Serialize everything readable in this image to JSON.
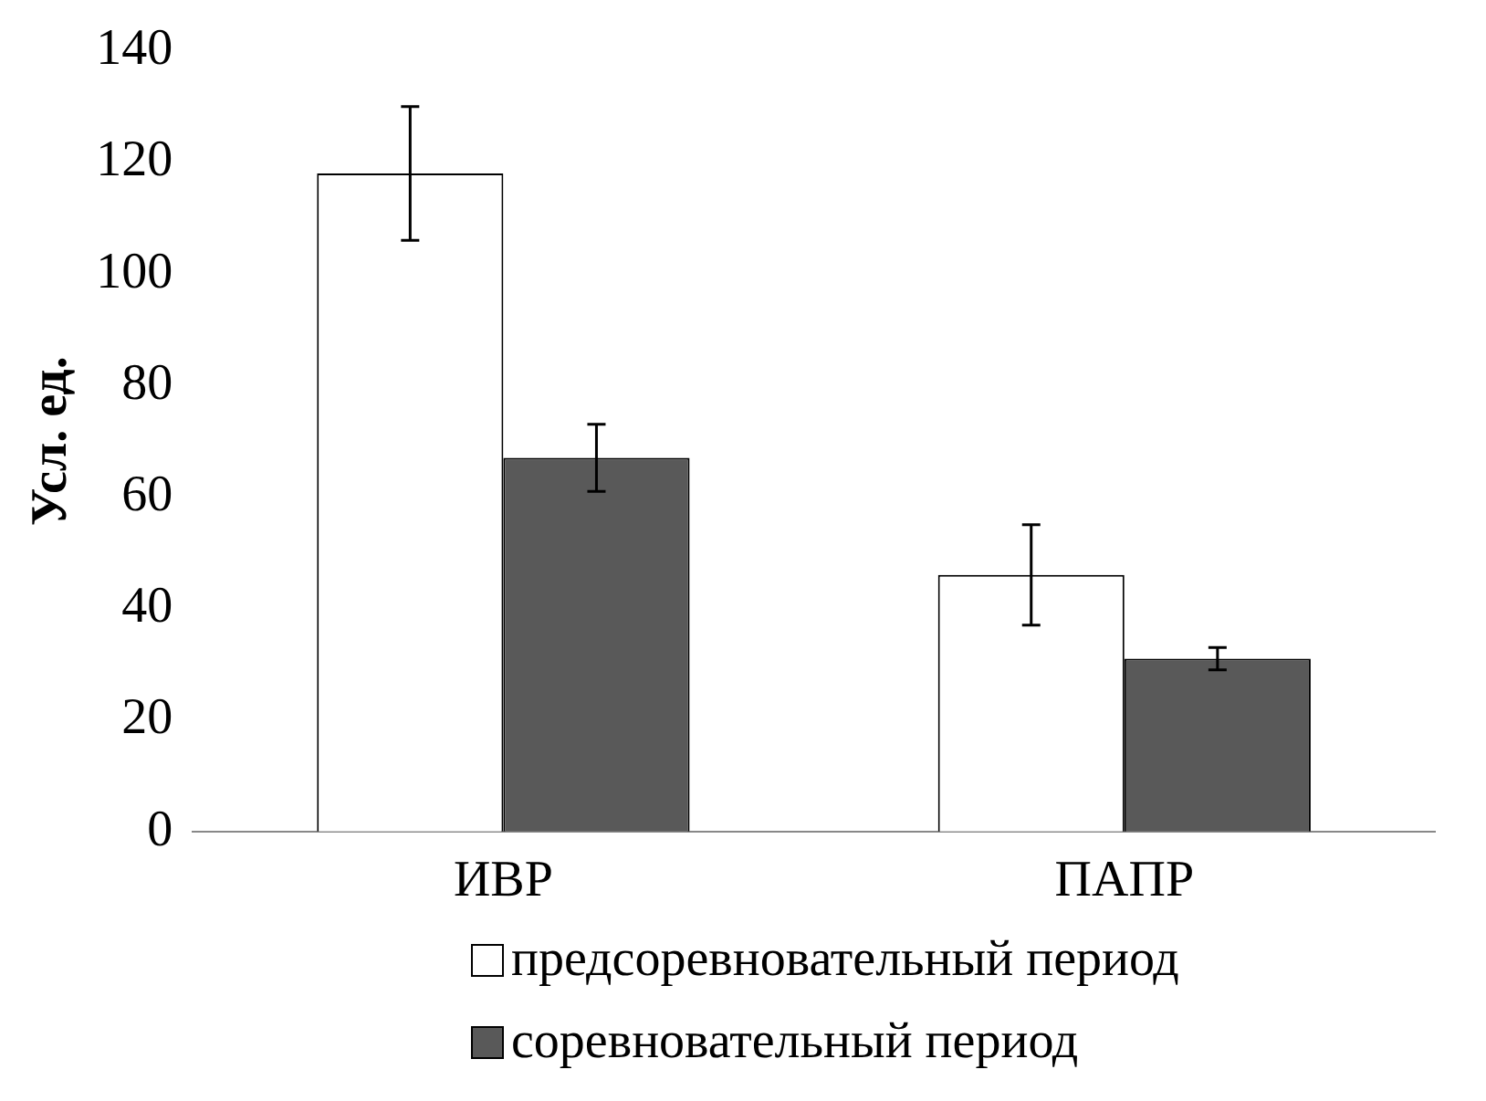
{
  "chart_data": {
    "type": "bar",
    "ylabel": "Усл. ед.",
    "categories": [
      "ИВР",
      "ПАПР"
    ],
    "series": [
      {
        "name": "предсоревновательный период",
        "color": "#ffffff",
        "values": [
          118,
          46
        ],
        "errors": [
          12,
          9
        ]
      },
      {
        "name": "соревновательный период",
        "color": "#595959",
        "values": [
          67,
          31
        ],
        "errors": [
          6,
          2
        ]
      }
    ],
    "ylim": [
      0,
      140
    ],
    "yticks": [
      0,
      20,
      40,
      60,
      80,
      100,
      120,
      140
    ],
    "grid": false,
    "legend": "bottom"
  }
}
